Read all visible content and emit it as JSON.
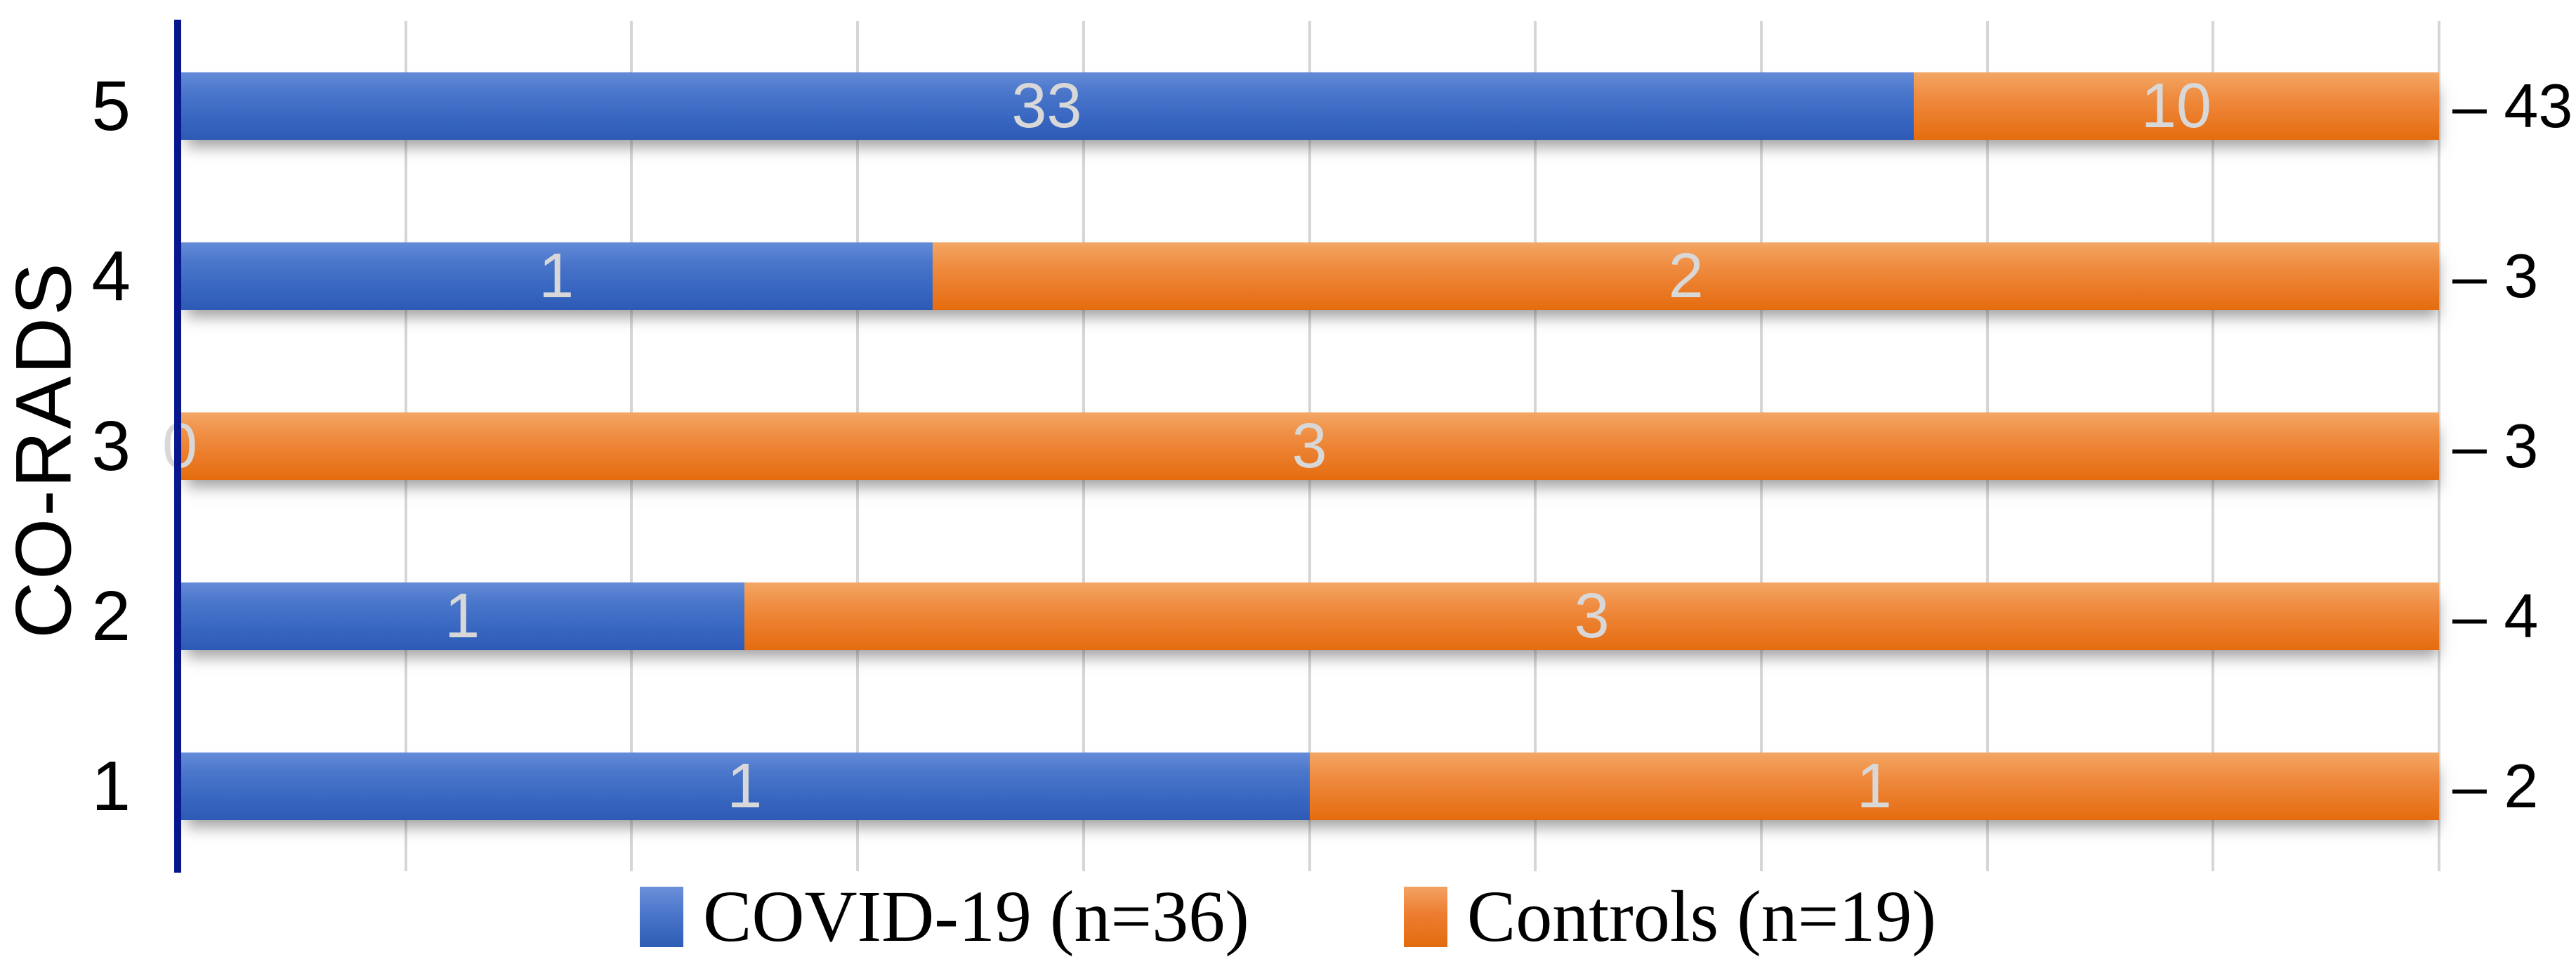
{
  "chart_data": {
    "type": "bar",
    "orientation": "horizontal",
    "stacked": "100%",
    "title": "",
    "xlabel": "",
    "ylabel": "CO-RADS",
    "categories": [
      "5",
      "4",
      "3",
      "2",
      "1"
    ],
    "series": [
      {
        "name": "COVID-19 (n=36)",
        "color": "#4472C4",
        "values": [
          33,
          1,
          0,
          1,
          1
        ]
      },
      {
        "name": "Controls (n=19)",
        "color": "#ED7D31",
        "values": [
          10,
          2,
          3,
          3,
          1
        ]
      }
    ],
    "totals": [
      43,
      3,
      3,
      4,
      2
    ],
    "total_label_prefix": "– ",
    "xlim_percent": [
      0,
      100
    ],
    "gridline_step_percent": 10,
    "grid": true,
    "legend_position": "bottom"
  },
  "legend": {
    "items": [
      {
        "label": "COVID-19 (n=36)",
        "color": "#4472C4",
        "swatch": "blue-square"
      },
      {
        "label": "Controls (n=19)",
        "color": "#ED7D31",
        "swatch": "orange-square"
      }
    ]
  },
  "axis": {
    "y_title": "CO-RADS",
    "axis_line_color": "#09178C",
    "gridline_color": "#D6D6D6",
    "data_label_color": "#D8D8D8"
  }
}
